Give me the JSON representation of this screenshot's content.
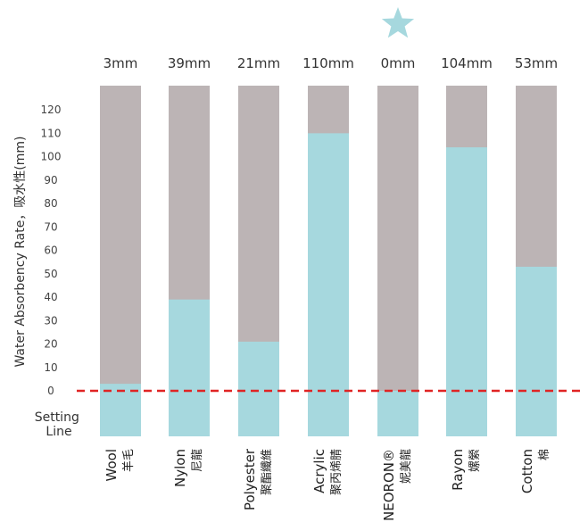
{
  "chart_data": {
    "type": "bar",
    "ylabel": "Water Absorbency Rate，吸水性(mm)",
    "ylim": [
      0,
      120
    ],
    "yticks": [
      0,
      10,
      20,
      30,
      40,
      50,
      60,
      70,
      80,
      90,
      100,
      110,
      120
    ],
    "setting_line_label": "Setting Line",
    "colors": {
      "fill": "#a6d8de",
      "background": "#bcb4b5",
      "setting_line": "#e02424",
      "star": "#a6d8de"
    },
    "highlight_index": 4,
    "categories": [
      {
        "en": "Wool",
        "cn": "羊毛",
        "value": 3,
        "label": "3mm"
      },
      {
        "en": "Nylon",
        "cn": "尼龍",
        "value": 39,
        "label": "39mm"
      },
      {
        "en": "Polyester",
        "cn": "聚酯纖維",
        "value": 21,
        "label": "21mm"
      },
      {
        "en": "Acrylic",
        "cn": "聚丙烯腈",
        "value": 110,
        "label": "110mm"
      },
      {
        "en": "NEORON®",
        "cn": "妮美龍",
        "value": 0,
        "label": "0mm"
      },
      {
        "en": "Rayon",
        "cn": "嫘縈",
        "value": 104,
        "label": "104mm"
      },
      {
        "en": "Cotton",
        "cn": "棉",
        "value": 53,
        "label": "53mm"
      }
    ]
  }
}
